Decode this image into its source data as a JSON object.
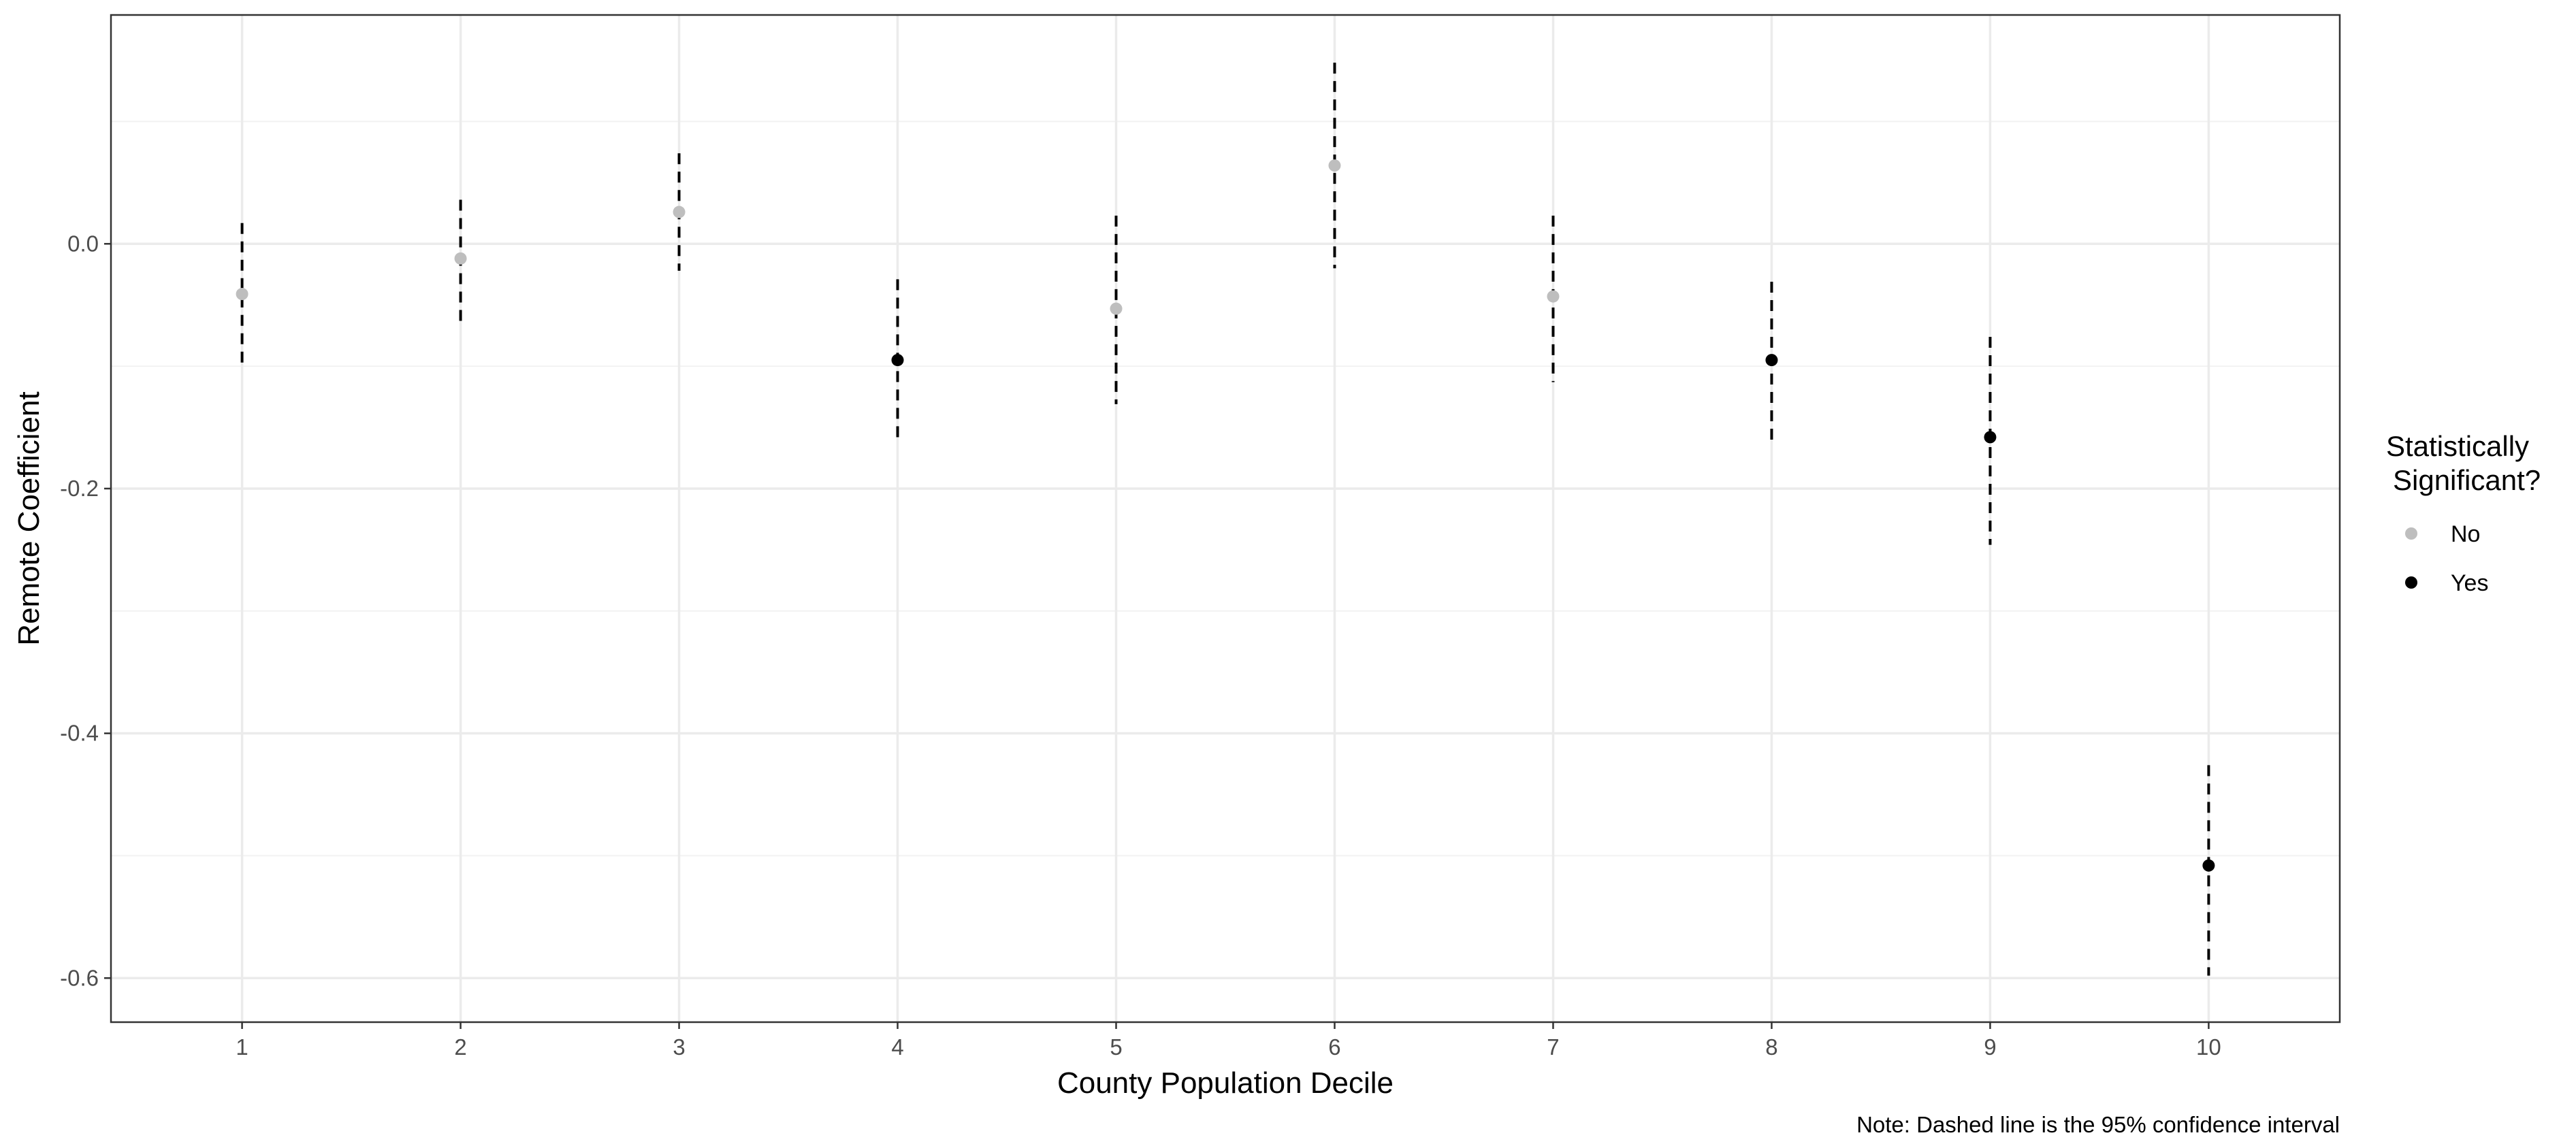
{
  "chart_data": {
    "type": "scatter",
    "xlabel": "County Population Decile",
    "ylabel": "Remote Coefficient",
    "caption": "Note: Dashed line is the 95% confidence interval",
    "legend": {
      "title_line1": "Statistically",
      "title_line2": "Significant?",
      "placement": "right",
      "items": [
        {
          "label": "No",
          "color": "#bebebe"
        },
        {
          "label": "Yes",
          "color": "#000000"
        }
      ]
    },
    "x_ticks": [
      1,
      2,
      3,
      4,
      5,
      6,
      7,
      8,
      9,
      10
    ],
    "x_tick_labels": [
      "1",
      "2",
      "3",
      "4",
      "5",
      "6",
      "7",
      "8",
      "9",
      "10"
    ],
    "y_ticks": [
      0.0,
      -0.2,
      -0.4,
      -0.6
    ],
    "y_tick_labels": [
      "0.0",
      "-0.2",
      "-0.4",
      "-0.6"
    ],
    "xlim": [
      0.4,
      10.6
    ],
    "ylim": [
      -0.636,
      0.187
    ],
    "grid": true,
    "points": [
      {
        "x": 1,
        "y": -0.041,
        "lower": -0.101,
        "upper": 0.017,
        "significant": "No"
      },
      {
        "x": 2,
        "y": -0.012,
        "lower": -0.063,
        "upper": 0.036,
        "significant": "No"
      },
      {
        "x": 3,
        "y": 0.026,
        "lower": -0.022,
        "upper": 0.074,
        "significant": "No"
      },
      {
        "x": 4,
        "y": -0.095,
        "lower": -0.162,
        "upper": -0.029,
        "significant": "Yes"
      },
      {
        "x": 5,
        "y": -0.053,
        "lower": -0.131,
        "upper": 0.023,
        "significant": "No"
      },
      {
        "x": 6,
        "y": 0.064,
        "lower": -0.02,
        "upper": 0.148,
        "significant": "No"
      },
      {
        "x": 7,
        "y": -0.043,
        "lower": -0.113,
        "upper": 0.023,
        "significant": "No"
      },
      {
        "x": 8,
        "y": -0.095,
        "lower": -0.165,
        "upper": -0.031,
        "significant": "Yes"
      },
      {
        "x": 9,
        "y": -0.158,
        "lower": -0.246,
        "upper": -0.076,
        "significant": "Yes"
      },
      {
        "x": 10,
        "y": -0.508,
        "lower": -0.598,
        "upper": -0.426,
        "significant": "Yes"
      }
    ],
    "colors": {
      "No": "#bebebe",
      "Yes": "#000000"
    }
  }
}
